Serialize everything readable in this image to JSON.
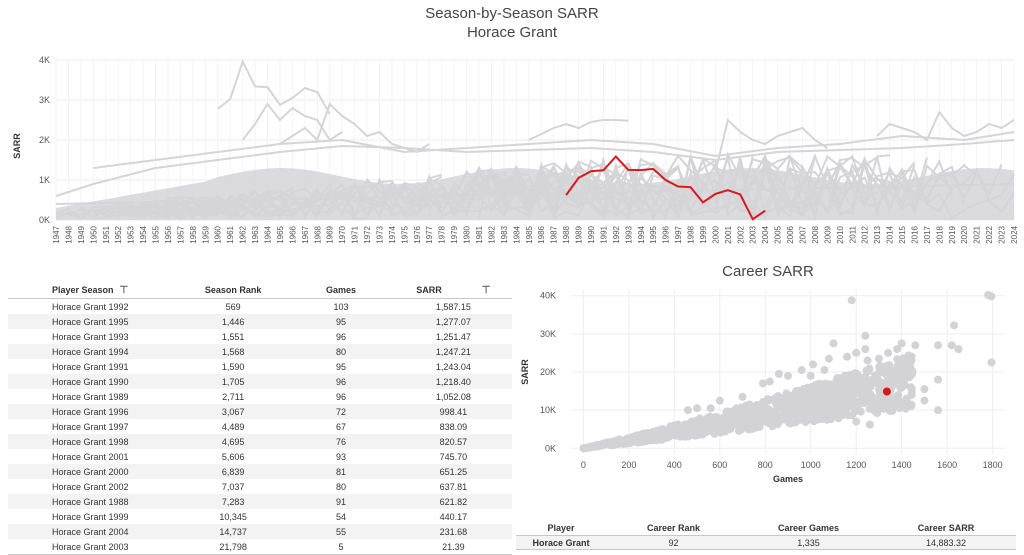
{
  "line_chart": {
    "title": "Season-by-Season SARR",
    "subtitle": "Horace Grant",
    "chart_data": {
      "type": "line",
      "ylabel": "SARR",
      "xlabel": "",
      "xlim": [
        1947,
        2024
      ],
      "ylim": [
        0,
        4000
      ],
      "y_ticks": [
        0,
        1000,
        2000,
        3000,
        4000
      ],
      "y_tick_labels": [
        "0K",
        "1K",
        "2K",
        "3K",
        "4K"
      ],
      "grid": true,
      "highlight_color": "#d7191c",
      "background_color": "#d5d5d8",
      "highlight_series": {
        "name": "Horace Grant",
        "x": [
          1988,
          1989,
          1990,
          1991,
          1992,
          1993,
          1994,
          1995,
          1996,
          1997,
          1998,
          1999,
          2000,
          2001,
          2002,
          2003,
          2004
        ],
        "y": [
          621.82,
          1052.08,
          1218.4,
          1243.04,
          1587.15,
          1251.47,
          1247.21,
          1277.07,
          998.41,
          838.09,
          820.57,
          440.17,
          651.25,
          745.7,
          637.81,
          21.39,
          231.68
        ]
      },
      "background_series": [
        {
          "x": [
            1960,
            1961,
            1962,
            1963,
            1964,
            1965,
            1966,
            1967,
            1968,
            1969
          ],
          "y": [
            2780,
            3020,
            3960,
            3340,
            3320,
            2880,
            3050,
            3300,
            3200,
            2650
          ]
        },
        {
          "x": [
            1962,
            1963,
            1964,
            1965,
            1966,
            1967,
            1968,
            1969,
            1970
          ],
          "y": [
            2000,
            2400,
            2900,
            2500,
            2800,
            2600,
            2500,
            2000,
            2200
          ]
        },
        {
          "x": [
            1965,
            1966,
            1967,
            1968,
            1969,
            1970,
            1971,
            1972,
            1973,
            1974,
            1975,
            1976,
            1977
          ],
          "y": [
            1900,
            2100,
            2300,
            2000,
            2900,
            2600,
            2400,
            2100,
            2200,
            1900,
            1800,
            1700,
            1900
          ]
        },
        {
          "x": [
            1985,
            1986,
            1987,
            1988,
            1989,
            1990,
            1991,
            1992,
            1993
          ],
          "y": [
            2000,
            2150,
            2300,
            2400,
            2300,
            2450,
            2500,
            2500,
            2480
          ]
        },
        {
          "x": [
            2000,
            2001,
            2002,
            2003,
            2004,
            2005,
            2006,
            2007,
            2008,
            2009
          ],
          "y": [
            1200,
            2500,
            2200,
            2000,
            1900,
            2100,
            2200,
            2300,
            2000,
            1800
          ]
        },
        {
          "x": [
            2013,
            2014,
            2015,
            2016,
            2017,
            2018,
            2019,
            2020,
            2021,
            2022,
            2023,
            2024
          ],
          "y": [
            2100,
            2400,
            2300,
            2200,
            2000,
            2700,
            2300,
            2100,
            2200,
            2400,
            2300,
            2500
          ]
        },
        {
          "x": [
            1947,
            1950,
            1955,
            1960,
            1965,
            1970,
            1975,
            1980,
            1985,
            1990,
            1995,
            2000,
            2005,
            2010,
            2015,
            2020,
            2024
          ],
          "y": [
            600,
            900,
            1300,
            1500,
            1700,
            1850,
            1800,
            1700,
            1750,
            1800,
            1700,
            1500,
            1700,
            1750,
            1800,
            1900,
            2000
          ]
        },
        {
          "x": [
            1950,
            1955,
            1960,
            1965,
            1970,
            1975,
            1980,
            1985,
            1990,
            1995,
            2000,
            2005,
            2010,
            2015,
            2020,
            2024
          ],
          "y": [
            1300,
            1500,
            1700,
            1900,
            2000,
            1700,
            1800,
            1900,
            2000,
            1900,
            1600,
            1800,
            1900,
            2100,
            2000,
            2200
          ]
        },
        {
          "x": [
            1947,
            2024
          ],
          "y": [
            400,
            900
          ]
        }
      ],
      "x_tick_labels": [
        "1947",
        "1948",
        "1949",
        "1950",
        "1951",
        "1952",
        "1953",
        "1954",
        "1955",
        "1956",
        "1957",
        "1958",
        "1959",
        "1960",
        "1961",
        "1962",
        "1963",
        "1964",
        "1965",
        "1966",
        "1967",
        "1968",
        "1969",
        "1970",
        "1971",
        "1972",
        "1973",
        "1974",
        "1975",
        "1976",
        "1977",
        "1978",
        "1979",
        "1980",
        "1981",
        "1982",
        "1983",
        "1984",
        "1985",
        "1986",
        "1987",
        "1988",
        "1989",
        "1990",
        "1991",
        "1992",
        "1993",
        "1994",
        "1995",
        "1996",
        "1997",
        "1998",
        "1999",
        "2000",
        "2001",
        "2002",
        "2003",
        "2004",
        "2005",
        "2006",
        "2007",
        "2008",
        "2009",
        "2010",
        "2011",
        "2012",
        "2013",
        "2014",
        "2015",
        "2016",
        "2017",
        "2018",
        "2019",
        "2020",
        "2021",
        "2022",
        "2023",
        "2024"
      ]
    }
  },
  "season_table": {
    "headers": [
      "Player Season",
      "Season Rank",
      "Games",
      "SARR"
    ],
    "rows": [
      [
        "Horace Grant 1992",
        "569",
        "103",
        "1,587.15"
      ],
      [
        "Horace Grant 1995",
        "1,446",
        "95",
        "1,277.07"
      ],
      [
        "Horace Grant 1993",
        "1,551",
        "96",
        "1,251.47"
      ],
      [
        "Horace Grant 1994",
        "1,568",
        "80",
        "1,247.21"
      ],
      [
        "Horace Grant 1991",
        "1,590",
        "95",
        "1,243.04"
      ],
      [
        "Horace Grant 1990",
        "1,705",
        "96",
        "1,218.40"
      ],
      [
        "Horace Grant 1989",
        "2,711",
        "96",
        "1,052.08"
      ],
      [
        "Horace Grant 1996",
        "3,067",
        "72",
        "998.41"
      ],
      [
        "Horace Grant 1997",
        "4,489",
        "67",
        "838.09"
      ],
      [
        "Horace Grant 1998",
        "4,695",
        "76",
        "820.57"
      ],
      [
        "Horace Grant 2001",
        "5,606",
        "93",
        "745.70"
      ],
      [
        "Horace Grant 2000",
        "6,839",
        "81",
        "651.25"
      ],
      [
        "Horace Grant 2002",
        "7,037",
        "80",
        "637.81"
      ],
      [
        "Horace Grant 1988",
        "7,283",
        "91",
        "621.82"
      ],
      [
        "Horace Grant 1999",
        "10,345",
        "54",
        "440.17"
      ],
      [
        "Horace Grant 2004",
        "14,737",
        "55",
        "231.68"
      ],
      [
        "Horace Grant 2003",
        "21,798",
        "5",
        "21.39"
      ]
    ],
    "sort_icon": "sort-descending-icon"
  },
  "scatter_chart": {
    "title": "Career SARR",
    "chart_data": {
      "type": "scatter",
      "xlabel": "Games",
      "ylabel": "SARR",
      "xlim": [
        -50,
        1850
      ],
      "ylim": [
        -1500,
        41500
      ],
      "x_ticks": [
        0,
        200,
        400,
        600,
        800,
        1000,
        1200,
        1400,
        1600,
        1800
      ],
      "y_ticks": [
        0,
        10000,
        20000,
        30000,
        40000
      ],
      "y_tick_labels": [
        "0K",
        "10K",
        "20K",
        "30K",
        "40K"
      ],
      "grid": true,
      "point_color": "#d3d3d6",
      "highlight_color": "#d7191c",
      "highlight_point": {
        "name": "Horace Grant",
        "x": 1335,
        "y": 14883.32
      },
      "notable_points": [
        {
          "x": 1180,
          "y": 38800
        },
        {
          "x": 1780,
          "y": 40200
        },
        {
          "x": 1795,
          "y": 39800
        },
        {
          "x": 1795,
          "y": 22500
        },
        {
          "x": 1630,
          "y": 32200
        },
        {
          "x": 1620,
          "y": 27000
        },
        {
          "x": 1650,
          "y": 26000
        },
        {
          "x": 1560,
          "y": 27000
        },
        {
          "x": 1560,
          "y": 18000
        },
        {
          "x": 1460,
          "y": 27000
        },
        {
          "x": 1440,
          "y": 20500
        },
        {
          "x": 1400,
          "y": 27500
        },
        {
          "x": 1380,
          "y": 26000
        },
        {
          "x": 1380,
          "y": 21000
        },
        {
          "x": 1340,
          "y": 25000
        },
        {
          "x": 1330,
          "y": 21500
        },
        {
          "x": 1300,
          "y": 23500
        },
        {
          "x": 1240,
          "y": 29500
        },
        {
          "x": 1240,
          "y": 26000
        },
        {
          "x": 1200,
          "y": 25000
        },
        {
          "x": 1250,
          "y": 23000
        },
        {
          "x": 1160,
          "y": 24000
        },
        {
          "x": 1100,
          "y": 27500
        },
        {
          "x": 1080,
          "y": 23500
        },
        {
          "x": 1060,
          "y": 20500
        },
        {
          "x": 1010,
          "y": 22000
        },
        {
          "x": 960,
          "y": 20500
        },
        {
          "x": 900,
          "y": 19000
        },
        {
          "x": 860,
          "y": 19500
        },
        {
          "x": 820,
          "y": 17500
        },
        {
          "x": 790,
          "y": 17000
        },
        {
          "x": 1000,
          "y": 19000
        },
        {
          "x": 1120,
          "y": 18000
        },
        {
          "x": 1400,
          "y": 17500
        },
        {
          "x": 1440,
          "y": 16000
        },
        {
          "x": 1500,
          "y": 12500
        },
        {
          "x": 1560,
          "y": 10000
        },
        {
          "x": 1500,
          "y": 15500
        },
        {
          "x": 1420,
          "y": 13000
        },
        {
          "x": 1260,
          "y": 6200
        },
        {
          "x": 1200,
          "y": 7000
        },
        {
          "x": 1150,
          "y": 10500
        },
        {
          "x": 600,
          "y": 12500
        },
        {
          "x": 560,
          "y": 10500
        },
        {
          "x": 500,
          "y": 10500
        },
        {
          "x": 460,
          "y": 10000
        },
        {
          "x": 700,
          "y": 13500
        },
        {
          "x": 650,
          "y": 8500
        }
      ]
    }
  },
  "career_table": {
    "headers": [
      "Player",
      "Career Rank",
      "Career Games",
      "Career SARR"
    ],
    "row": [
      "Horace Grant",
      "92",
      "1,335",
      "14,883.32"
    ]
  }
}
